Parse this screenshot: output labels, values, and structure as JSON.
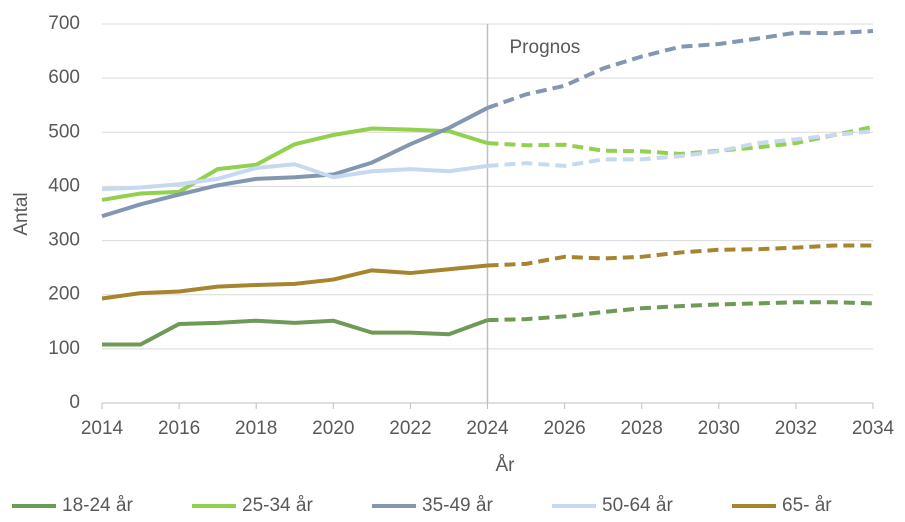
{
  "chart_data": {
    "type": "line",
    "x": [
      2014,
      2015,
      2016,
      2017,
      2018,
      2019,
      2020,
      2021,
      2022,
      2023,
      2024,
      2025,
      2026,
      2027,
      2028,
      2029,
      2030,
      2031,
      2032,
      2033,
      2034
    ],
    "forecast_start": 2024,
    "annotation": "Prognos",
    "x_label": "År",
    "y_label": "Antal",
    "xlim": [
      2014,
      2034
    ],
    "xticks": [
      2014,
      2016,
      2018,
      2020,
      2022,
      2024,
      2026,
      2028,
      2030,
      2032,
      2034
    ],
    "ylim": [
      0,
      700
    ],
    "yticks": [
      0,
      100,
      200,
      300,
      400,
      500,
      600,
      700
    ],
    "grid": true,
    "legend": "bottom",
    "series": [
      {
        "name": "18-24 år",
        "color": "#6e9a57",
        "values": [
          108,
          108,
          146,
          148,
          152,
          148,
          152,
          130,
          130,
          127,
          153,
          155,
          160,
          168,
          175,
          179,
          182,
          184,
          186,
          186,
          184
        ]
      },
      {
        "name": "25-34 år",
        "color": "#92d050",
        "values": [
          375,
          387,
          390,
          432,
          440,
          478,
          495,
          507,
          505,
          502,
          480,
          476,
          477,
          466,
          465,
          460,
          466,
          472,
          480,
          495,
          510
        ]
      },
      {
        "name": "35-49 år",
        "color": "#8497b0",
        "values": [
          345,
          367,
          385,
          402,
          414,
          417,
          422,
          444,
          478,
          508,
          545,
          570,
          586,
          618,
          640,
          658,
          663,
          673,
          684,
          683,
          687
        ]
      },
      {
        "name": "50-64 år",
        "color": "#c6d9f1",
        "values": [
          395,
          398,
          404,
          414,
          434,
          441,
          417,
          428,
          432,
          428,
          438,
          443,
          438,
          450,
          450,
          456,
          465,
          480,
          487,
          495,
          502
        ]
      },
      {
        "name": "65- år",
        "color": "#a6852e",
        "values": [
          193,
          203,
          206,
          215,
          218,
          220,
          228,
          245,
          240,
          247,
          254,
          257,
          270,
          267,
          270,
          278,
          283,
          284,
          287,
          291,
          291
        ]
      }
    ]
  }
}
